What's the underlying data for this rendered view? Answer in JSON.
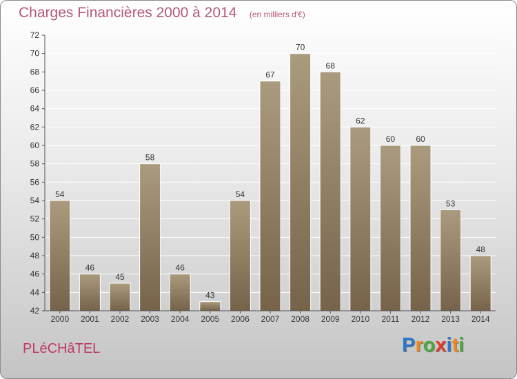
{
  "chart_data": {
    "type": "bar",
    "title": "Charges Financières 2000 à 2014",
    "subtitle": "(en milliers d'€)",
    "xlabel": "",
    "ylabel": "",
    "categories": [
      "2000",
      "2001",
      "2002",
      "2003",
      "2004",
      "2005",
      "2006",
      "2007",
      "2008",
      "2009",
      "2010",
      "2011",
      "2012",
      "2013",
      "2014"
    ],
    "values": [
      54,
      46,
      45,
      58,
      46,
      43,
      54,
      67,
      70,
      68,
      62,
      60,
      60,
      53,
      48
    ],
    "ylim": [
      42,
      72
    ],
    "yticks": [
      42,
      44,
      46,
      48,
      50,
      52,
      54,
      56,
      58,
      60,
      62,
      64,
      66,
      68,
      70,
      72
    ],
    "grid": true,
    "legend": "none",
    "bar_color_top": "#ab9b7e",
    "bar_color_bottom": "#76634a"
  },
  "footer": {
    "commune": "PLéCHâTEL",
    "logo_letters": [
      "P",
      "r",
      "o",
      "x",
      "i",
      "t",
      "i"
    ],
    "logo_colors": [
      "#2a79c8",
      "#f08a1c",
      "#4aa83d",
      "#e23a2a",
      "#2a79c8",
      "#f08a1c",
      "#4aa83d"
    ]
  }
}
